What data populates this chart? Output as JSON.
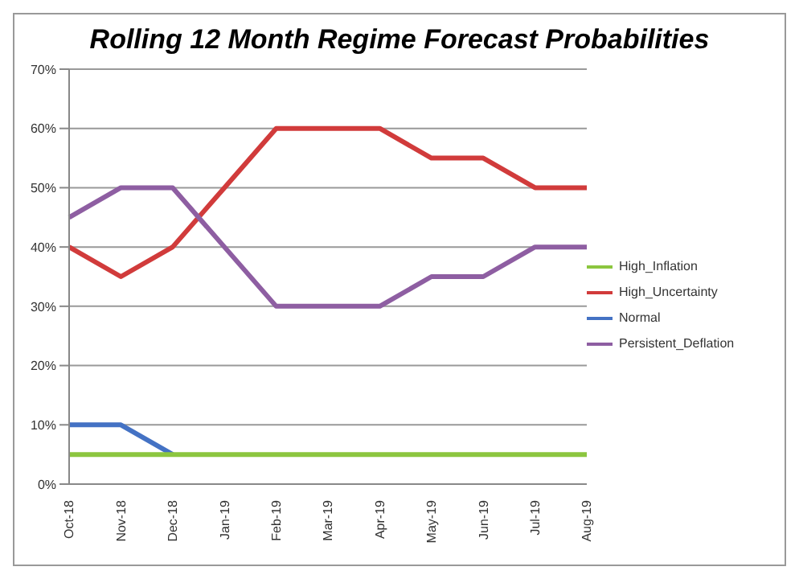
{
  "chart_data": {
    "type": "line",
    "title": "Rolling 12 Month Regime Forecast Probabilities",
    "categories": [
      "Oct-18",
      "Nov-18",
      "Dec-18",
      "Jan-19",
      "Feb-19",
      "Mar-19",
      "Apr-19",
      "May-19",
      "Jun-19",
      "Jul-19",
      "Aug-19"
    ],
    "series": [
      {
        "name": "Normal",
        "color": "#4472c4",
        "values": [
          10,
          10,
          5,
          null,
          null,
          null,
          null,
          null,
          null,
          null,
          null
        ]
      },
      {
        "name": "High_Uncertainty",
        "color": "#d13b3b",
        "values": [
          40,
          35,
          40,
          50,
          60,
          60,
          60,
          55,
          55,
          50,
          50
        ]
      },
      {
        "name": "High_Inflation",
        "color": "#8cc63f",
        "values": [
          5,
          5,
          5,
          5,
          5,
          5,
          5,
          5,
          5,
          5,
          5
        ]
      },
      {
        "name": "Persistent_Deflation",
        "color": "#8e5ea2",
        "values": [
          45,
          50,
          50,
          40,
          30,
          30,
          30,
          35,
          35,
          40,
          40
        ]
      }
    ],
    "ylim": [
      0,
      70
    ],
    "yticks": [
      {
        "value": 0,
        "label": "0%"
      },
      {
        "value": 10,
        "label": "10%"
      },
      {
        "value": 20,
        "label": "20%"
      },
      {
        "value": 30,
        "label": "30%"
      },
      {
        "value": 40,
        "label": "40%"
      },
      {
        "value": 50,
        "label": "50%"
      },
      {
        "value": 60,
        "label": "60%"
      },
      {
        "value": 70,
        "label": "70%"
      }
    ],
    "grid": "y",
    "legend": "right",
    "marker": "none",
    "line_style": "solid"
  }
}
